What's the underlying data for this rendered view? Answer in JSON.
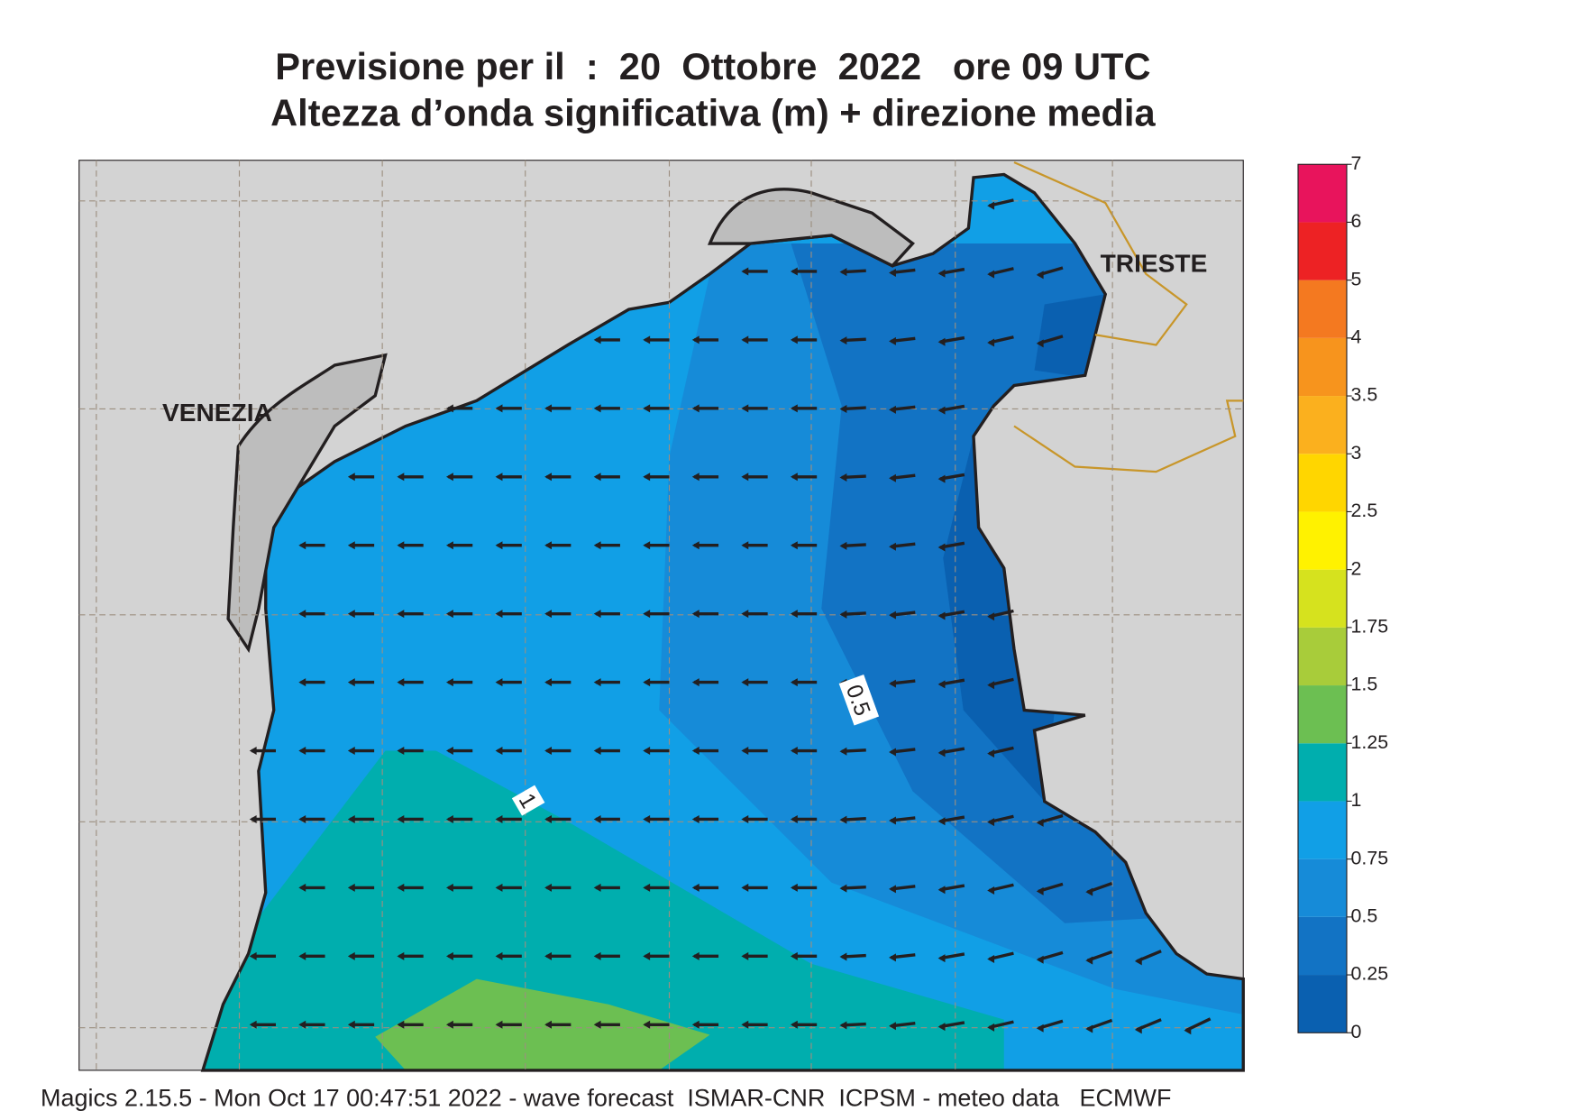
{
  "header": {
    "title": "Previsione per il  :  20  Ottobre  2022   ore 09 UTC",
    "subtitle": "Altezza d’onda significativa (m) + direzione media"
  },
  "map": {
    "places": [
      "VENEZIA",
      "TRIESTE"
    ],
    "contour_labels": [
      1,
      0.5
    ]
  },
  "colorbar": {
    "levels": [
      0,
      0.25,
      0.5,
      0.75,
      1,
      1.25,
      1.5,
      1.75,
      2,
      2.5,
      3,
      3.5,
      4,
      5,
      6,
      7
    ],
    "colors": [
      "#0a60b0",
      "#1273c4",
      "#168bd8",
      "#119fe6",
      "#00aeae",
      "#6cbf52",
      "#a8cc3a",
      "#d6e21e",
      "#fff200",
      "#ffd600",
      "#fbb01e",
      "#f7941d",
      "#f47920",
      "#ed2224",
      "#e8145c"
    ]
  },
  "footer": "Magics 2.15.5 - Mon Oct 17 00:47:51 2022 - wave forecast  ISMAR-CNR  ICPSM - meteo data   ECMWF"
}
